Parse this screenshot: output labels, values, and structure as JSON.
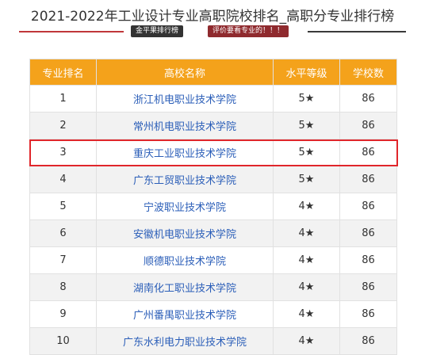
{
  "header": {
    "title": "2021-2022年工业设计专业高职院校排名_高职分专业排行榜",
    "badge_dark": "金平果排行榜",
    "badge_red": "评价要看专业的！！！"
  },
  "table": {
    "columns": [
      "专业排名",
      "高校名称",
      "水平等级",
      "学校数"
    ],
    "rows": [
      {
        "rank": "1",
        "school": "浙江机电职业技术学院",
        "level": "5★",
        "count": "86"
      },
      {
        "rank": "2",
        "school": "常州机电职业技术学院",
        "level": "5★",
        "count": "86"
      },
      {
        "rank": "3",
        "school": "重庆工业职业技术学院",
        "level": "5★",
        "count": "86"
      },
      {
        "rank": "4",
        "school": "广东工贸职业技术学院",
        "level": "5★",
        "count": "86"
      },
      {
        "rank": "5",
        "school": "宁波职业技术学院",
        "level": "4★",
        "count": "86"
      },
      {
        "rank": "6",
        "school": "安徽机电职业技术学院",
        "level": "4★",
        "count": "86"
      },
      {
        "rank": "7",
        "school": "顺德职业技术学院",
        "level": "4★",
        "count": "86"
      },
      {
        "rank": "8",
        "school": "湖南化工职业技术学院",
        "level": "4★",
        "count": "86"
      },
      {
        "rank": "9",
        "school": "广州番禺职业技术学院",
        "level": "4★",
        "count": "86"
      },
      {
        "rank": "10",
        "school": "广东水利电力职业技术学院",
        "level": "4★",
        "count": "86"
      }
    ],
    "highlighted_rank": "3"
  },
  "colors": {
    "header_bg": "#f4a21b",
    "highlight_border": "#e0262b",
    "school_link": "#2b5eb8"
  }
}
